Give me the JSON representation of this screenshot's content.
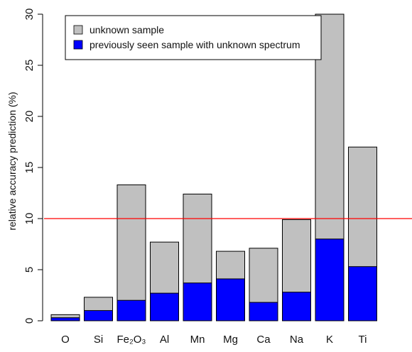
{
  "chart_data": {
    "type": "bar",
    "stacked": false,
    "overlay": true,
    "ylabel": "relative accuracy prediction (%)",
    "xlabel": "",
    "title": "",
    "ylim": [
      0,
      30
    ],
    "yticks": [
      0,
      5,
      10,
      15,
      20,
      25,
      30
    ],
    "ytick_labels": [
      "0",
      "5",
      "10",
      "15",
      "20",
      "25",
      "30"
    ],
    "categories": [
      "O",
      "Si",
      "Fe₂O₃",
      "Al",
      "Mn",
      "Mg",
      "Ca",
      "Na",
      "K",
      "Ti"
    ],
    "series": [
      {
        "name": "unknown sample",
        "color": "#c0c0c0",
        "values": [
          0.6,
          2.3,
          13.3,
          7.7,
          12.4,
          6.8,
          7.1,
          9.9,
          30.0,
          17.0
        ]
      },
      {
        "name": "previously seen sample with unknown spectrum",
        "color": "#0000ff",
        "values": [
          0.3,
          1.0,
          2.0,
          2.7,
          3.7,
          4.1,
          1.8,
          2.8,
          8.0,
          5.3
        ]
      }
    ],
    "reference_line": {
      "value": 10,
      "color": "#ff0000"
    },
    "legend_position": "top-left",
    "grid": false
  }
}
